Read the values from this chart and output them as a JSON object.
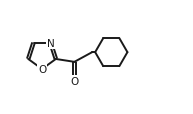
{
  "background_color": "#ffffff",
  "line_color": "#1a1a1a",
  "line_width": 1.4,
  "figsize": [
    1.93,
    1.15
  ],
  "dpi": 100,
  "xlim": [
    0.0,
    9.5
  ],
  "ylim": [
    1.0,
    6.0
  ]
}
